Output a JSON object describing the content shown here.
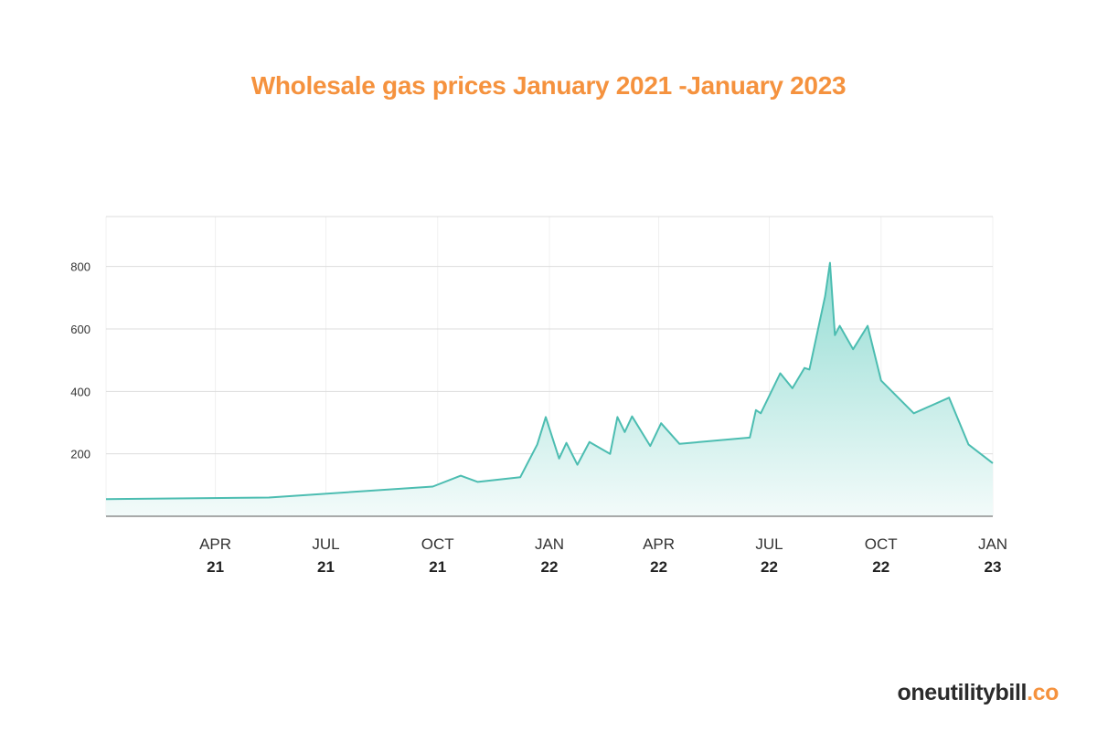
{
  "chart_data": {
    "type": "area",
    "title": "Wholesale gas prices January 2021 -January 2023",
    "xlabel": "",
    "ylabel": "",
    "ylim": [
      0,
      960
    ],
    "xlim": [
      "2021-01-01",
      "2023-01-01"
    ],
    "grid": true,
    "legend": "none",
    "y_ticks": [
      200,
      400,
      600,
      800
    ],
    "x_ticks": [
      {
        "date": "2021-04-01",
        "month": "APR",
        "year": "21"
      },
      {
        "date": "2021-07-01",
        "month": "JUL",
        "year": "21"
      },
      {
        "date": "2021-10-01",
        "month": "OCT",
        "year": "21"
      },
      {
        "date": "2022-01-01",
        "month": "JAN",
        "year": "22"
      },
      {
        "date": "2022-04-01",
        "month": "APR",
        "year": "22"
      },
      {
        "date": "2022-07-01",
        "month": "JUL",
        "year": "22"
      },
      {
        "date": "2022-10-01",
        "month": "OCT",
        "year": "22"
      },
      {
        "date": "2023-01-01",
        "month": "JAN",
        "year": "23"
      }
    ],
    "series": [
      {
        "points": [
          [
            "2021-01-01",
            55
          ],
          [
            "2021-05-15",
            60
          ],
          [
            "2021-09-27",
            95
          ],
          [
            "2021-10-20",
            130
          ],
          [
            "2021-11-03",
            110
          ],
          [
            "2021-12-08",
            125
          ],
          [
            "2021-12-22",
            230
          ],
          [
            "2021-12-29",
            318
          ],
          [
            "2022-01-09",
            185
          ],
          [
            "2022-01-15",
            235
          ],
          [
            "2022-01-24",
            165
          ],
          [
            "2022-02-03",
            238
          ],
          [
            "2022-02-20",
            200
          ],
          [
            "2022-02-26",
            318
          ],
          [
            "2022-03-04",
            270
          ],
          [
            "2022-03-10",
            320
          ],
          [
            "2022-03-25",
            225
          ],
          [
            "2022-04-03",
            298
          ],
          [
            "2022-04-18",
            232
          ],
          [
            "2022-06-15",
            252
          ],
          [
            "2022-06-20",
            340
          ],
          [
            "2022-06-24",
            330
          ],
          [
            "2022-07-10",
            458
          ],
          [
            "2022-07-20",
            410
          ],
          [
            "2022-07-30",
            475
          ],
          [
            "2022-08-03",
            470
          ],
          [
            "2022-08-16",
            705
          ],
          [
            "2022-08-20",
            812
          ],
          [
            "2022-08-24",
            580
          ],
          [
            "2022-08-28",
            610
          ],
          [
            "2022-09-08",
            535
          ],
          [
            "2022-09-20",
            610
          ],
          [
            "2022-10-01",
            435
          ],
          [
            "2022-10-28",
            330
          ],
          [
            "2022-11-26",
            380
          ],
          [
            "2022-12-12",
            230
          ],
          [
            "2023-01-01",
            170
          ]
        ]
      }
    ],
    "colors": {
      "line": "#4cbdb1",
      "fill_top": "#93dcd3",
      "fill_bottom": "#f3fbfa",
      "grid": "#dddddd",
      "axis": "#555555"
    }
  },
  "brand": {
    "name": "oneutilitybill",
    "suffix": ".co",
    "name_color": "#2b2b2b",
    "suffix_color": "#f5923e"
  },
  "title_color": "#f5923e"
}
